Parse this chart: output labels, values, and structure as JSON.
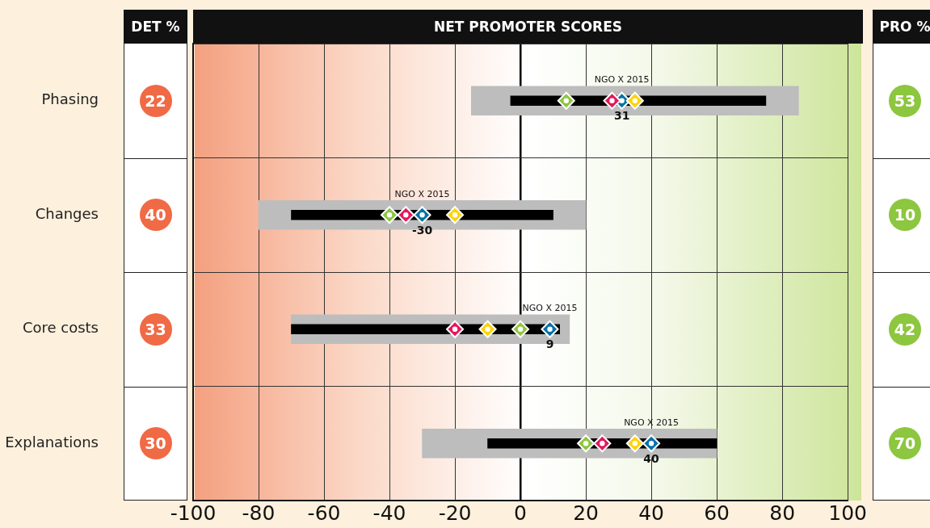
{
  "chart_data": [
    {
      "type": "other",
      "title": "DET %",
      "values": [
        22,
        40,
        33,
        30
      ],
      "color": "#f06a45",
      "data_labels": true
    },
    {
      "type": "bar",
      "title": "NET PROMOTER SCORES",
      "orientation": "horizontal",
      "categories": [
        "Phasing",
        "Changes",
        "Core costs",
        "Explanations"
      ],
      "series": [
        {
          "type": "bar",
          "color": "#bdbdbd",
          "base": [
            -15,
            -80,
            -70,
            -30
          ],
          "values": [
            100,
            100,
            85,
            90
          ]
        },
        {
          "type": "bar",
          "color": "#000000",
          "base": [
            -3,
            -70,
            -70,
            -10
          ],
          "values": [
            78,
            80,
            82,
            70
          ]
        },
        {
          "type": "scatter",
          "color": "#8dc63f",
          "values": [
            14,
            -40,
            0,
            20
          ]
        },
        {
          "type": "scatter",
          "color": "#e6175c",
          "values": [
            28,
            -35,
            -20,
            25
          ]
        },
        {
          "type": "scatter",
          "color": "#ffd200",
          "values": [
            35,
            -20,
            -10,
            35
          ]
        },
        {
          "type": "scatter",
          "name": "NGO X 2015",
          "color": "#0072a8",
          "values": [
            31,
            -30,
            9,
            40
          ],
          "value_labels": [
            "31",
            "-30",
            "9",
            "40"
          ]
        }
      ],
      "xlim": [
        -100,
        100
      ],
      "xticks": [
        -100,
        -80,
        -60,
        -40,
        -20,
        0,
        20,
        40,
        60,
        80,
        100
      ],
      "grid": true,
      "marker": "diamond",
      "legend": false
    },
    {
      "type": "other",
      "title": "PRO %",
      "values": [
        53,
        10,
        42,
        70
      ],
      "color": "#8dc63f",
      "data_labels": true
    }
  ]
}
